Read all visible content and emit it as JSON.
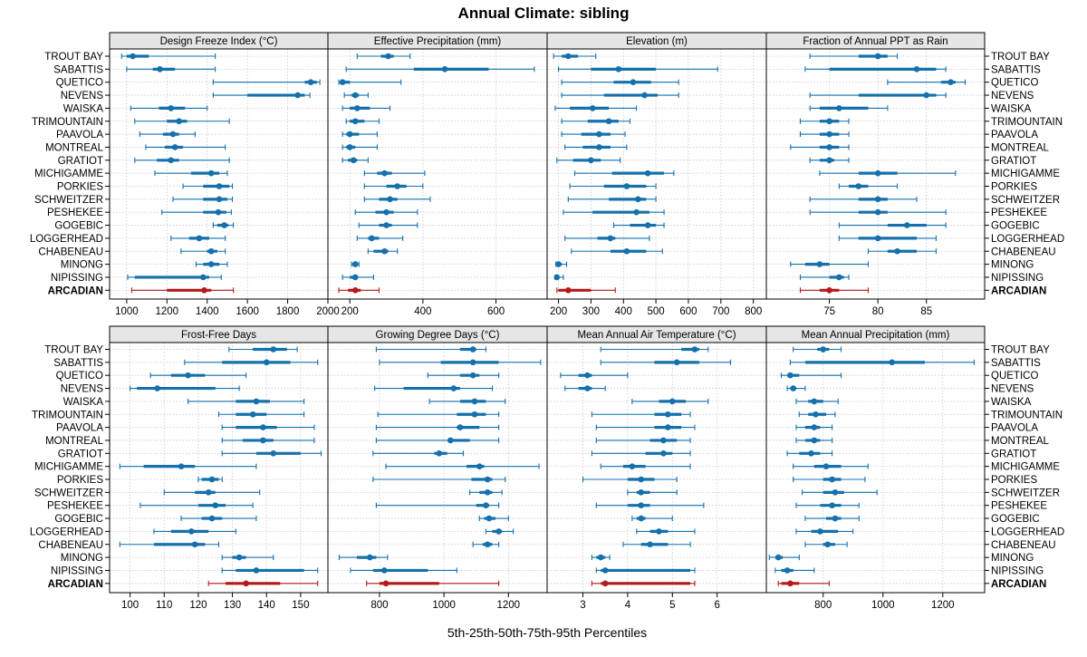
{
  "chart_data": {
    "type": "percentile-interval",
    "title": "Annual Climate: sibling",
    "xlabel": "5th-25th-50th-75th-95th Percentiles",
    "colors": {
      "series": "#1570ac",
      "highlight": "#b5191b",
      "grid": "#c8c8c8",
      "strip": "#e6e6e6"
    },
    "sites": [
      "TROUT BAY",
      "SABATTIS",
      "QUETICO",
      "NEVENS",
      "WAISKA",
      "TRIMOUNTAIN",
      "PAAVOLA",
      "MONTREAL",
      "GRATIOT",
      "MICHIGAMME",
      "PORKIES",
      "SCHWEITZER",
      "PESHEKEE",
      "GOGEBIC",
      "LOGGERHEAD",
      "CHABENEAU",
      "MINONG",
      "NIPISSING",
      "ARCADIAN"
    ],
    "highlight": "ARCADIAN",
    "panels": [
      {
        "name": "Design Freeze Index (°C)",
        "xlim": [
          915,
          2000
        ],
        "ticks": [
          1000,
          1200,
          1400,
          1600,
          1800,
          2000
        ],
        "data": [
          [
            975,
            1000,
            1030,
            1110,
            1440
          ],
          [
            1000,
            1130,
            1165,
            1240,
            1440
          ],
          [
            1430,
            1885,
            1915,
            1945,
            1960
          ],
          [
            1430,
            1600,
            1850,
            1885,
            1910
          ],
          [
            1020,
            1160,
            1220,
            1290,
            1400
          ],
          [
            1040,
            1200,
            1260,
            1300,
            1510
          ],
          [
            1065,
            1180,
            1230,
            1260,
            1340
          ],
          [
            1095,
            1190,
            1240,
            1280,
            1490
          ],
          [
            1040,
            1150,
            1220,
            1260,
            1510
          ],
          [
            1140,
            1320,
            1420,
            1460,
            1500
          ],
          [
            1280,
            1380,
            1460,
            1510,
            1525
          ],
          [
            1230,
            1380,
            1460,
            1500,
            1525
          ],
          [
            1175,
            1380,
            1455,
            1495,
            1520
          ],
          [
            1430,
            1450,
            1485,
            1505,
            1530
          ],
          [
            1220,
            1310,
            1360,
            1410,
            1490
          ],
          [
            1270,
            1400,
            1420,
            1450,
            1490
          ],
          [
            1345,
            1380,
            1420,
            1460,
            1500
          ],
          [
            1005,
            1040,
            1380,
            1410,
            1470
          ],
          [
            1025,
            1200,
            1385,
            1420,
            1530
          ]
        ]
      },
      {
        "name": "Effective Precipitation (mm)",
        "xlim": [
          140,
          740
        ],
        "ticks": [
          200,
          400,
          600
        ],
        "data": [
          [
            220,
            285,
            305,
            320,
            365
          ],
          [
            190,
            375,
            460,
            580,
            705
          ],
          [
            170,
            175,
            180,
            200,
            340
          ],
          [
            185,
            205,
            215,
            225,
            250
          ],
          [
            180,
            200,
            220,
            255,
            310
          ],
          [
            190,
            200,
            215,
            240,
            280
          ],
          [
            180,
            190,
            200,
            225,
            275
          ],
          [
            180,
            190,
            200,
            215,
            275
          ],
          [
            180,
            195,
            210,
            220,
            250
          ],
          [
            240,
            275,
            295,
            315,
            405
          ],
          [
            240,
            300,
            330,
            355,
            400
          ],
          [
            240,
            280,
            310,
            330,
            420
          ],
          [
            215,
            270,
            300,
            320,
            385
          ],
          [
            225,
            280,
            300,
            315,
            385
          ],
          [
            220,
            250,
            260,
            280,
            345
          ],
          [
            250,
            265,
            295,
            305,
            330
          ],
          [
            205,
            210,
            215,
            220,
            225
          ],
          [
            180,
            200,
            215,
            220,
            265
          ],
          [
            170,
            195,
            215,
            230,
            280
          ]
        ]
      },
      {
        "name": "Elevation (m)",
        "xlim": [
          165,
          840
        ],
        "ticks": [
          200,
          300,
          400,
          500,
          600,
          700,
          800
        ],
        "data": [
          [
            185,
            210,
            230,
            260,
            315
          ],
          [
            200,
            300,
            385,
            500,
            690
          ],
          [
            210,
            370,
            430,
            485,
            570
          ],
          [
            210,
            340,
            465,
            505,
            570
          ],
          [
            190,
            235,
            305,
            355,
            440
          ],
          [
            210,
            290,
            355,
            385,
            420
          ],
          [
            210,
            270,
            325,
            360,
            405
          ],
          [
            220,
            275,
            325,
            360,
            410
          ],
          [
            195,
            245,
            300,
            330,
            390
          ],
          [
            250,
            365,
            475,
            525,
            555
          ],
          [
            235,
            340,
            410,
            470,
            500
          ],
          [
            230,
            355,
            445,
            470,
            500
          ],
          [
            215,
            305,
            440,
            480,
            525
          ],
          [
            370,
            420,
            475,
            500,
            525
          ],
          [
            220,
            320,
            360,
            375,
            480
          ],
          [
            240,
            360,
            410,
            470,
            520
          ],
          [
            192,
            195,
            200,
            210,
            225
          ],
          [
            190,
            193,
            195,
            200,
            215
          ],
          [
            195,
            200,
            230,
            300,
            375
          ]
        ]
      },
      {
        "name": "Fraction of Annual PPT as Rain",
        "xlim": [
          68.5,
          91
        ],
        "ticks": [
          75,
          80,
          85
        ],
        "data": [
          [
            73,
            78,
            80,
            81,
            82
          ],
          [
            72.5,
            75,
            84,
            86,
            87
          ],
          [
            81,
            86.5,
            87.5,
            88,
            89
          ],
          [
            73,
            78,
            85,
            86,
            87
          ],
          [
            73,
            74,
            76,
            79,
            81
          ],
          [
            72,
            74,
            75,
            76,
            77
          ],
          [
            72,
            74,
            75,
            76,
            77
          ],
          [
            71,
            74,
            75,
            76,
            77
          ],
          [
            73,
            74,
            75,
            75.5,
            77
          ],
          [
            74,
            78,
            80,
            82,
            88
          ],
          [
            76,
            77,
            78,
            79,
            82
          ],
          [
            73,
            78,
            80,
            81,
            84
          ],
          [
            73,
            78,
            80,
            81,
            87
          ],
          [
            76,
            81,
            83,
            85,
            87
          ],
          [
            76,
            78,
            80,
            84,
            86
          ],
          [
            79,
            81,
            82,
            84,
            86
          ],
          [
            71,
            72.5,
            74,
            75,
            79
          ],
          [
            72,
            75,
            76,
            76.5,
            77
          ],
          [
            72,
            74,
            75,
            76,
            79
          ]
        ]
      },
      {
        "name": "Frost-Free Days",
        "xlim": [
          94,
          158
        ],
        "ticks": [
          100,
          110,
          120,
          130,
          140,
          150
        ],
        "data": [
          [
            129,
            136,
            142,
            146,
            149
          ],
          [
            116,
            127,
            140,
            147,
            155
          ],
          [
            106,
            112,
            117,
            122,
            134
          ],
          [
            100,
            102,
            108,
            125,
            132
          ],
          [
            117,
            131,
            137,
            141,
            151
          ],
          [
            126,
            131,
            136,
            140,
            151
          ],
          [
            127,
            131,
            139,
            143,
            154
          ],
          [
            127,
            133,
            139,
            142,
            154
          ],
          [
            127,
            137,
            142,
            150,
            156
          ],
          [
            97,
            104,
            115,
            119,
            137
          ],
          [
            120,
            121,
            124,
            126,
            127
          ],
          [
            110,
            119,
            123,
            125,
            138
          ],
          [
            103,
            120,
            125,
            128,
            136
          ],
          [
            115,
            121,
            124,
            127,
            137
          ],
          [
            107,
            112,
            118,
            123,
            131
          ],
          [
            97,
            107,
            119,
            122,
            126
          ],
          [
            127,
            130,
            132,
            134,
            142
          ],
          [
            127,
            131,
            137,
            151,
            155
          ],
          [
            123,
            128,
            134,
            144,
            155
          ]
        ]
      },
      {
        "name": "Growing Degree Days (°C)",
        "xlim": [
          640,
          1320
        ],
        "ticks": [
          800,
          1000,
          1200
        ],
        "data": [
          [
            790,
            1050,
            1090,
            1100,
            1130
          ],
          [
            800,
            990,
            1090,
            1170,
            1300
          ],
          [
            950,
            1050,
            1090,
            1110,
            1170
          ],
          [
            785,
            875,
            1030,
            1050,
            1150
          ],
          [
            955,
            1050,
            1095,
            1130,
            1190
          ],
          [
            795,
            1040,
            1095,
            1130,
            1170
          ],
          [
            790,
            1040,
            1050,
            1110,
            1170
          ],
          [
            790,
            1015,
            1020,
            1080,
            1170
          ],
          [
            780,
            970,
            985,
            1010,
            1060
          ],
          [
            820,
            1070,
            1110,
            1125,
            1295
          ],
          [
            780,
            1085,
            1135,
            1150,
            1190
          ],
          [
            1080,
            1110,
            1135,
            1150,
            1180
          ],
          [
            790,
            1100,
            1130,
            1140,
            1170
          ],
          [
            1110,
            1125,
            1140,
            1160,
            1200
          ],
          [
            1130,
            1150,
            1170,
            1180,
            1215
          ],
          [
            1090,
            1120,
            1135,
            1150,
            1170
          ],
          [
            675,
            730,
            770,
            790,
            825
          ],
          [
            710,
            780,
            815,
            950,
            1040
          ],
          [
            760,
            800,
            820,
            985,
            1170
          ]
        ]
      },
      {
        "name": "Mean Annual Air Temperature (°C)",
        "xlim": [
          2.2,
          7.1
        ],
        "ticks": [
          3,
          4,
          5,
          6
        ],
        "data": [
          [
            3.4,
            5.2,
            5.5,
            5.6,
            5.8
          ],
          [
            3.4,
            4.6,
            5.1,
            5.6,
            6.3
          ],
          [
            2.5,
            2.9,
            3.1,
            3.2,
            4.0
          ],
          [
            2.6,
            2.9,
            3.1,
            3.2,
            3.5
          ],
          [
            4.1,
            4.7,
            5.0,
            5.3,
            5.8
          ],
          [
            3.2,
            4.6,
            4.9,
            5.2,
            5.4
          ],
          [
            3.3,
            4.6,
            4.9,
            5.2,
            5.5
          ],
          [
            3.3,
            4.5,
            4.8,
            5.1,
            5.4
          ],
          [
            3.2,
            4.4,
            4.8,
            5.0,
            5.4
          ],
          [
            3.4,
            3.9,
            4.1,
            4.4,
            5.4
          ],
          [
            3.0,
            4.0,
            4.3,
            4.6,
            5.1
          ],
          [
            4.0,
            4.2,
            4.3,
            4.5,
            5.1
          ],
          [
            3.3,
            4.0,
            4.3,
            4.5,
            5.7
          ],
          [
            4.1,
            4.2,
            4.3,
            4.4,
            5.0
          ],
          [
            4.2,
            4.5,
            4.7,
            4.9,
            5.5
          ],
          [
            3.9,
            4.3,
            4.5,
            4.9,
            5.4
          ],
          [
            3.2,
            3.3,
            3.4,
            3.5,
            3.6
          ],
          [
            3.3,
            3.4,
            3.5,
            5.4,
            5.5
          ],
          [
            3.2,
            3.4,
            3.5,
            5.4,
            5.5
          ]
        ]
      },
      {
        "name": "Mean Annual Precipitation (mm)",
        "xlim": [
          610,
          1340
        ],
        "ticks": [
          800,
          1000,
          1200
        ],
        "data": [
          [
            700,
            780,
            800,
            820,
            860
          ],
          [
            690,
            740,
            1030,
            1140,
            1305
          ],
          [
            660,
            680,
            690,
            720,
            860
          ],
          [
            680,
            690,
            700,
            710,
            740
          ],
          [
            710,
            750,
            770,
            800,
            850
          ],
          [
            720,
            750,
            775,
            810,
            840
          ],
          [
            710,
            740,
            770,
            790,
            830
          ],
          [
            710,
            740,
            770,
            790,
            830
          ],
          [
            680,
            720,
            760,
            790,
            830
          ],
          [
            700,
            770,
            810,
            860,
            950
          ],
          [
            700,
            800,
            830,
            860,
            940
          ],
          [
            730,
            800,
            840,
            870,
            980
          ],
          [
            710,
            790,
            830,
            860,
            920
          ],
          [
            740,
            810,
            840,
            860,
            920
          ],
          [
            710,
            760,
            790,
            850,
            900
          ],
          [
            740,
            800,
            815,
            840,
            880
          ],
          [
            620,
            640,
            650,
            665,
            720
          ],
          [
            640,
            660,
            680,
            700,
            770
          ],
          [
            650,
            660,
            690,
            720,
            820
          ]
        ]
      }
    ]
  }
}
